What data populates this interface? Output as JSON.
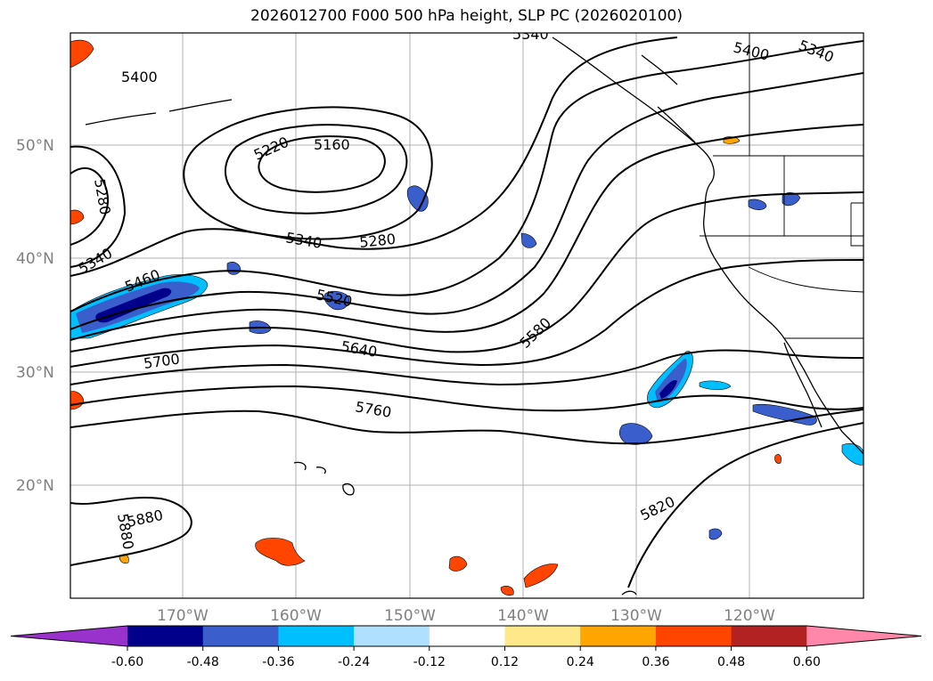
{
  "title": "2026012700 F000 500 hPa height, SLP PC (2026020100)",
  "lat_labels": [
    "50°N",
    "40°N",
    "30°N",
    "20°N"
  ],
  "lon_labels": [
    "170°W",
    "160°W",
    "150°W",
    "140°W",
    "130°W",
    "120°W"
  ],
  "contour_labels": [
    "5400",
    "5340",
    "5400",
    "5220",
    "5160",
    "5280",
    "5340",
    "5280",
    "5340",
    "5460",
    "5520",
    "5580",
    "5700",
    "5640",
    "5760",
    "5820",
    "5880",
    "5880",
    "5340"
  ],
  "colorbar": {
    "ticks": [
      "-0.60",
      "-0.48",
      "-0.36",
      "-0.24",
      "-0.12",
      "0.12",
      "0.24",
      "0.36",
      "0.48",
      "0.60"
    ],
    "colors": [
      "#9932cc",
      "#00008b",
      "#3a5fcd",
      "#00bfff",
      "#b0e0ff",
      "#ffffff",
      "#ffe88a",
      "#ffa500",
      "#ff4500",
      "#b22222",
      "#ff88aa"
    ]
  }
}
